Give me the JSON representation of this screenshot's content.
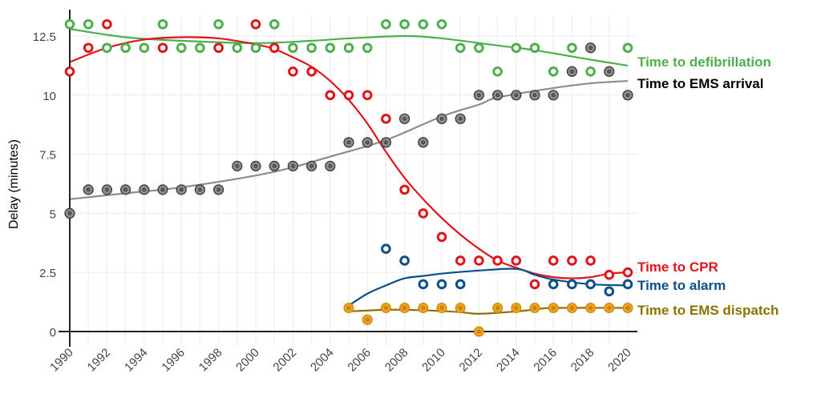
{
  "chart_data": {
    "type": "scatter",
    "title": "",
    "xlabel": "",
    "ylabel": "Delay (minutes)",
    "xlim": [
      1990,
      2020
    ],
    "ylim": [
      0,
      13
    ],
    "x_ticks": [
      "1990",
      "1992",
      "1994",
      "1996",
      "1998",
      "2000",
      "2002",
      "2004",
      "2006",
      "2008",
      "2010",
      "2012",
      "2014",
      "2016",
      "2018",
      "2020"
    ],
    "y_ticks": [
      "0",
      "2.5",
      "5",
      "7.5",
      "10",
      "12.5"
    ],
    "y_tick_values": [
      0,
      2.5,
      5,
      7.5,
      10,
      12.5
    ],
    "grid": true,
    "legend_placement": "right, inline labels",
    "series": [
      {
        "name": "Time to defibrillation",
        "color": "#4caf4c",
        "style": "ring",
        "points": [
          [
            1990,
            13
          ],
          [
            1991,
            13
          ],
          [
            1992,
            12
          ],
          [
            1993,
            12
          ],
          [
            1994,
            12
          ],
          [
            1995,
            13
          ],
          [
            1996,
            12
          ],
          [
            1997,
            12
          ],
          [
            1998,
            13
          ],
          [
            1999,
            12
          ],
          [
            2000,
            12
          ],
          [
            2001,
            13
          ],
          [
            2002,
            12
          ],
          [
            2003,
            12
          ],
          [
            2004,
            12
          ],
          [
            2005,
            12
          ],
          [
            2006,
            12
          ],
          [
            2007,
            13
          ],
          [
            2008,
            13
          ],
          [
            2009,
            13
          ],
          [
            2010,
            13
          ],
          [
            2011,
            12
          ],
          [
            2012,
            12
          ],
          [
            2013,
            11
          ],
          [
            2014,
            12
          ],
          [
            2015,
            12
          ],
          [
            2016,
            11
          ],
          [
            2017,
            12
          ],
          [
            2018,
            11
          ],
          [
            2020,
            12
          ]
        ],
        "trend": [
          [
            1990,
            12.8
          ],
          [
            1993,
            12.45
          ],
          [
            1996,
            12.3
          ],
          [
            2000,
            12.2
          ],
          [
            2003,
            12.3
          ],
          [
            2005,
            12.4
          ],
          [
            2008,
            12.5
          ],
          [
            2010,
            12.4
          ],
          [
            2013,
            12.1
          ],
          [
            2015,
            11.9
          ],
          [
            2018,
            11.5
          ],
          [
            2020,
            11.25
          ]
        ]
      },
      {
        "name": "Time to EMS arrival",
        "color": "#000000",
        "line_color": "#8c8c8c",
        "style": "filled-gray",
        "points": [
          [
            1990,
            5
          ],
          [
            1991,
            6
          ],
          [
            1992,
            6
          ],
          [
            1993,
            6
          ],
          [
            1994,
            6
          ],
          [
            1995,
            6
          ],
          [
            1996,
            6
          ],
          [
            1997,
            6
          ],
          [
            1998,
            6
          ],
          [
            1999,
            7
          ],
          [
            2000,
            7
          ],
          [
            2001,
            7
          ],
          [
            2002,
            7
          ],
          [
            2003,
            7
          ],
          [
            2004,
            7
          ],
          [
            2005,
            8
          ],
          [
            2006,
            8
          ],
          [
            2007,
            8
          ],
          [
            2008,
            9
          ],
          [
            2009,
            8
          ],
          [
            2010,
            9
          ],
          [
            2011,
            9
          ],
          [
            2012,
            10
          ],
          [
            2013,
            10
          ],
          [
            2014,
            10
          ],
          [
            2015,
            10
          ],
          [
            2016,
            10
          ],
          [
            2017,
            11
          ],
          [
            2018,
            12
          ],
          [
            2019,
            11
          ],
          [
            2020,
            10
          ]
        ],
        "trend": [
          [
            1990,
            5.6
          ],
          [
            1993,
            5.85
          ],
          [
            1996,
            6.1
          ],
          [
            2000,
            6.6
          ],
          [
            2002,
            6.95
          ],
          [
            2004,
            7.4
          ],
          [
            2007,
            8.1
          ],
          [
            2010,
            9.1
          ],
          [
            2012,
            9.6
          ],
          [
            2013,
            9.9
          ],
          [
            2016,
            10.3
          ],
          [
            2018,
            10.5
          ],
          [
            2020,
            10.6
          ]
        ]
      },
      {
        "name": "Time to CPR",
        "color": "#e0151b",
        "style": "ring",
        "points": [
          [
            1990,
            11
          ],
          [
            1991,
            12
          ],
          [
            1992,
            13
          ],
          [
            1995,
            12
          ],
          [
            1998,
            12
          ],
          [
            2000,
            13
          ],
          [
            2001,
            12
          ],
          [
            2002,
            11
          ],
          [
            2003,
            11
          ],
          [
            2004,
            10
          ],
          [
            2005,
            10
          ],
          [
            2006,
            10
          ],
          [
            2007,
            9
          ],
          [
            2008,
            6
          ],
          [
            2009,
            5
          ],
          [
            2010,
            4
          ],
          [
            2011,
            3
          ],
          [
            2012,
            3
          ],
          [
            2013,
            3
          ],
          [
            2014,
            3
          ],
          [
            2015,
            2
          ],
          [
            2016,
            3
          ],
          [
            2017,
            3
          ],
          [
            2018,
            3
          ],
          [
            2019,
            2.4
          ],
          [
            2020,
            2.5
          ]
        ],
        "trend": [
          [
            1990,
            11.4
          ],
          [
            1992,
            12.0
          ],
          [
            1994,
            12.35
          ],
          [
            1996,
            12.45
          ],
          [
            1998,
            12.4
          ],
          [
            2000,
            12.15
          ],
          [
            2001,
            11.95
          ],
          [
            2002,
            11.6
          ],
          [
            2003,
            11.2
          ],
          [
            2004,
            10.6
          ],
          [
            2005,
            9.8
          ],
          [
            2006,
            8.8
          ],
          [
            2007,
            7.6
          ],
          [
            2008,
            6.5
          ],
          [
            2009,
            5.6
          ],
          [
            2010,
            4.8
          ],
          [
            2011,
            4.1
          ],
          [
            2012,
            3.5
          ],
          [
            2013,
            3.0
          ],
          [
            2014,
            2.7
          ],
          [
            2015,
            2.45
          ],
          [
            2016,
            2.3
          ],
          [
            2017,
            2.25
          ],
          [
            2018,
            2.3
          ],
          [
            2019,
            2.45
          ],
          [
            2020,
            2.5
          ]
        ]
      },
      {
        "name": "Time to alarm",
        "color": "#0b4f8c",
        "style": "ring",
        "points": [
          [
            2007,
            3.5
          ],
          [
            2008,
            3
          ],
          [
            2009,
            2
          ],
          [
            2010,
            2
          ],
          [
            2011,
            2
          ],
          [
            2016,
            2
          ],
          [
            2017,
            2
          ],
          [
            2018,
            2
          ],
          [
            2019,
            1.7
          ],
          [
            2020,
            2
          ]
        ],
        "trend": [
          [
            2005,
            1.1
          ],
          [
            2006,
            1.6
          ],
          [
            2007,
            1.95
          ],
          [
            2008,
            2.25
          ],
          [
            2009,
            2.35
          ],
          [
            2010,
            2.45
          ],
          [
            2012,
            2.58
          ],
          [
            2014,
            2.65
          ],
          [
            2015,
            2.4
          ],
          [
            2016,
            2.2
          ],
          [
            2018,
            2.0
          ],
          [
            2020,
            1.95
          ]
        ]
      },
      {
        "name": "Time to EMS dispatch",
        "color": "#8a7300",
        "point_color": "#eba11a",
        "style": "filled-orange",
        "points": [
          [
            2005,
            1
          ],
          [
            2006,
            0.5
          ],
          [
            2007,
            1
          ],
          [
            2008,
            1
          ],
          [
            2009,
            1
          ],
          [
            2010,
            1
          ],
          [
            2011,
            1
          ],
          [
            2012,
            0
          ],
          [
            2013,
            1
          ],
          [
            2014,
            1
          ],
          [
            2015,
            1
          ],
          [
            2016,
            1
          ],
          [
            2017,
            1
          ],
          [
            2018,
            1
          ],
          [
            2019,
            1
          ],
          [
            2020,
            1
          ]
        ],
        "trend": [
          [
            2005,
            0.85
          ],
          [
            2007,
            0.92
          ],
          [
            2009,
            0.9
          ],
          [
            2011,
            0.82
          ],
          [
            2012,
            0.75
          ],
          [
            2014,
            0.85
          ],
          [
            2015,
            0.93
          ],
          [
            2016,
            1.0
          ],
          [
            2020,
            1.0
          ]
        ]
      }
    ]
  }
}
